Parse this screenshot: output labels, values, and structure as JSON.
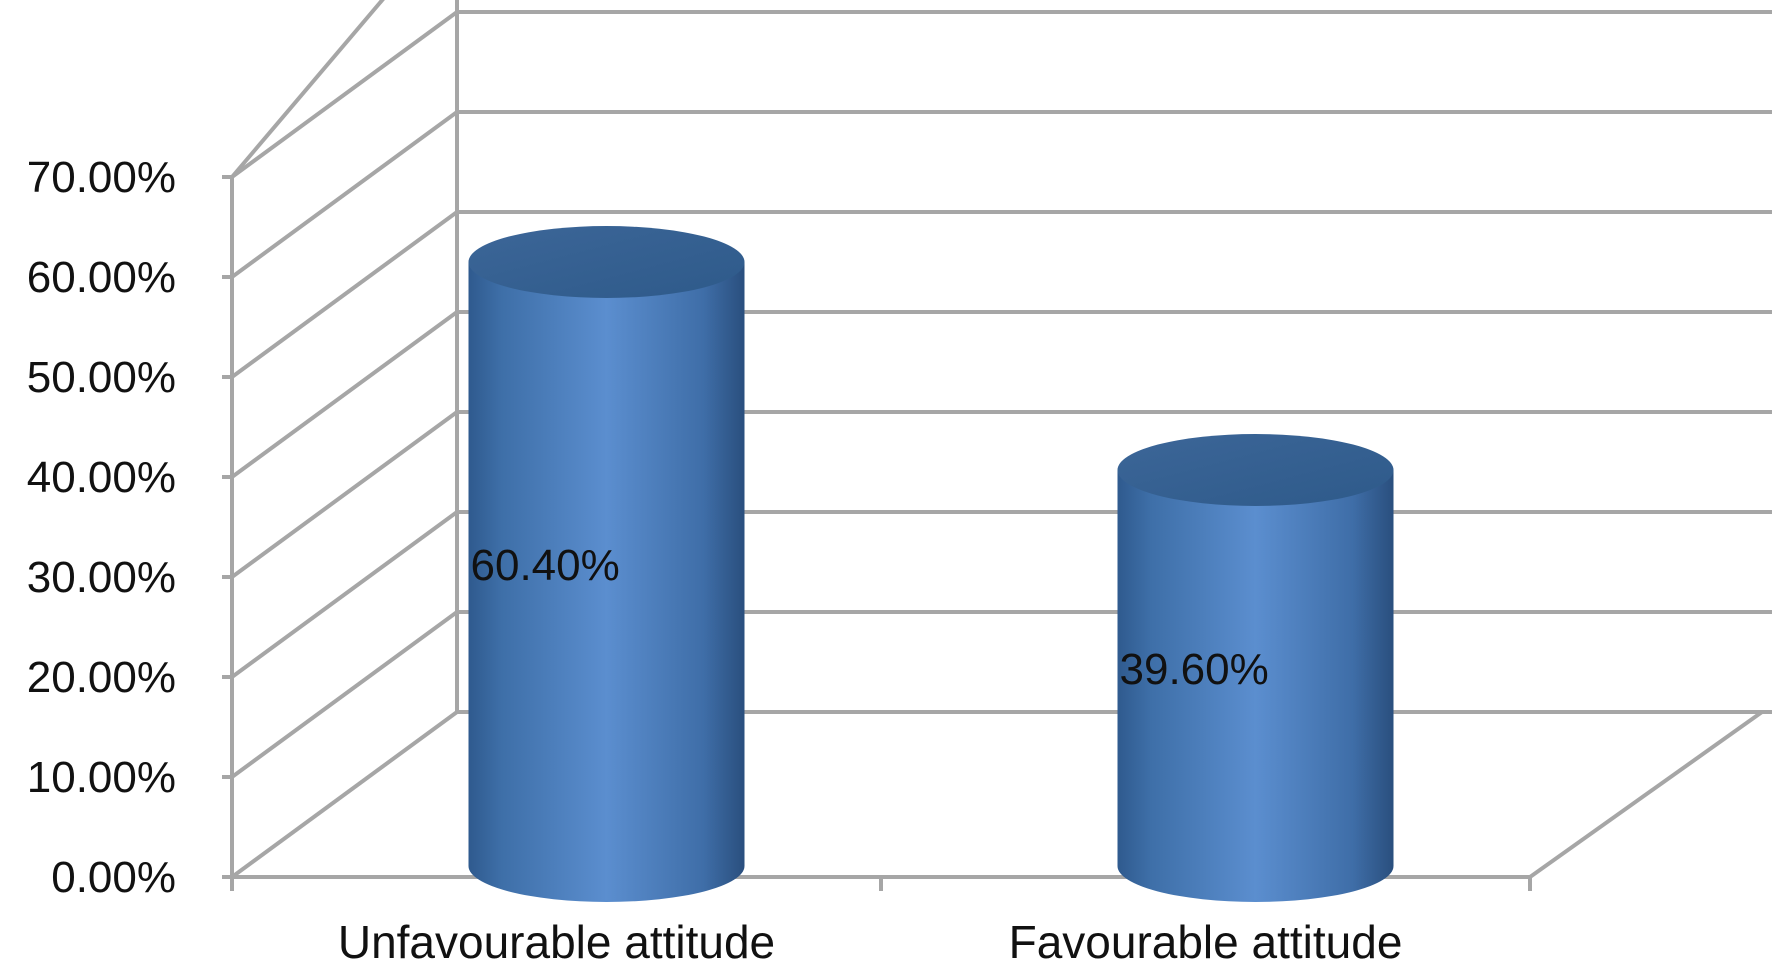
{
  "chart_data": {
    "type": "bar",
    "style": "3d-cylinder",
    "categories": [
      "Unfavourable attitude",
      "Favourable attitude"
    ],
    "values": [
      60.4,
      39.6
    ],
    "data_labels": [
      "60.40%",
      "39.60%"
    ],
    "ylim": [
      0,
      70
    ],
    "yticks": [
      0,
      10,
      20,
      30,
      40,
      50,
      60,
      70
    ],
    "ytick_labels": [
      "0.00%",
      "10.00%",
      "20.00%",
      "30.00%",
      "40.00%",
      "50.00%",
      "60.00%",
      "70.00%"
    ],
    "grid": true,
    "legend": "none",
    "bar_color": "#4F81BD"
  }
}
